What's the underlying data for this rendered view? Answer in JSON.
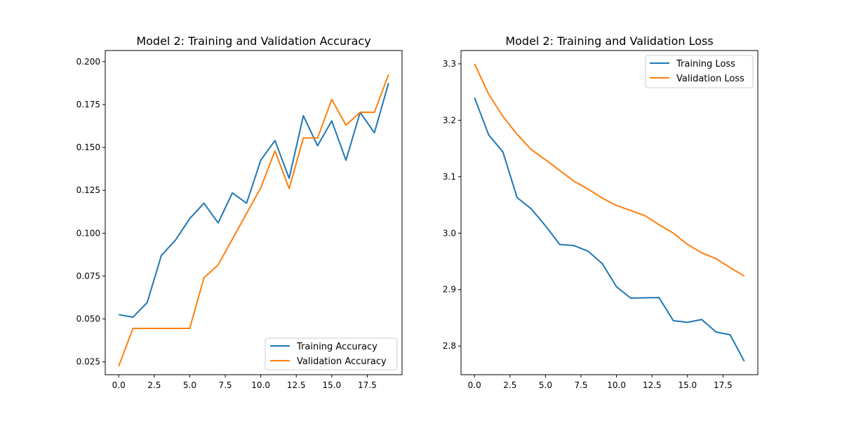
{
  "chart_data": [
    {
      "type": "line",
      "title": "Model 2: Training and Validation Accuracy",
      "xlabel": "",
      "ylabel": "",
      "xlim": [
        -0.95,
        19.95
      ],
      "ylim": [
        0.0175,
        0.2065
      ],
      "xticks": [
        "0.0",
        "2.5",
        "5.0",
        "7.5",
        "10.0",
        "12.5",
        "15.0",
        "17.5"
      ],
      "xtick_values": [
        0,
        2.5,
        5,
        7.5,
        10,
        12.5,
        15,
        17.5
      ],
      "yticks": [
        "0.025",
        "0.050",
        "0.075",
        "0.100",
        "0.125",
        "0.150",
        "0.175",
        "0.200"
      ],
      "ytick_values": [
        0.025,
        0.05,
        0.075,
        0.1,
        0.125,
        0.15,
        0.175,
        0.2
      ],
      "grid": false,
      "legend_position": "lower-right",
      "x": [
        0,
        1,
        2,
        3,
        4,
        5,
        6,
        7,
        8,
        9,
        10,
        11,
        12,
        13,
        14,
        15,
        16,
        17,
        18,
        19
      ],
      "series": [
        {
          "name": "Training Accuracy",
          "color": "#1f77b4",
          "values": [
            0.0525,
            0.051,
            0.0595,
            0.087,
            0.096,
            0.1085,
            0.1175,
            0.106,
            0.1235,
            0.1175,
            0.1425,
            0.154,
            0.132,
            0.1685,
            0.151,
            0.1655,
            0.1425,
            0.1705,
            0.1585,
            0.1875
          ]
        },
        {
          "name": "Validation Accuracy",
          "color": "#ff7f0e",
          "values": [
            0.0225,
            0.0445,
            0.0445,
            0.0445,
            0.0445,
            0.0445,
            0.074,
            0.0815,
            0.0965,
            0.1115,
            0.1265,
            0.148,
            0.126,
            0.1555,
            0.1555,
            0.178,
            0.163,
            0.1705,
            0.1705,
            0.1925
          ]
        }
      ]
    },
    {
      "type": "line",
      "title": "Model 2: Training and Validation Loss",
      "xlabel": "",
      "ylabel": "",
      "xlim": [
        -0.95,
        19.95
      ],
      "ylim": [
        2.7493,
        3.3235
      ],
      "xticks": [
        "0.0",
        "2.5",
        "5.0",
        "7.5",
        "10.0",
        "12.5",
        "15.0",
        "17.5"
      ],
      "xtick_values": [
        0,
        2.5,
        5,
        7.5,
        10,
        12.5,
        15,
        17.5
      ],
      "yticks": [
        "2.8",
        "2.9",
        "3.0",
        "3.1",
        "3.2",
        "3.3"
      ],
      "ytick_values": [
        2.8,
        2.9,
        3.0,
        3.1,
        3.2,
        3.3
      ],
      "grid": false,
      "legend_position": "upper-right",
      "x": [
        0,
        1,
        2,
        3,
        4,
        5,
        6,
        7,
        8,
        9,
        10,
        11,
        12,
        13,
        14,
        15,
        16,
        17,
        18,
        19
      ],
      "series": [
        {
          "name": "Training Loss",
          "color": "#1f77b4",
          "values": [
            3.24,
            3.174,
            3.144,
            3.063,
            3.043,
            3.013,
            2.98,
            2.978,
            2.968,
            2.946,
            2.905,
            2.885,
            2.8855,
            2.8858,
            2.845,
            2.842,
            2.847,
            2.825,
            2.82,
            2.773
          ]
        },
        {
          "name": "Validation Loss",
          "color": "#ff7f0e",
          "values": [
            3.3,
            3.246,
            3.207,
            3.175,
            3.148,
            3.13,
            3.111,
            3.092,
            3.078,
            3.062,
            3.049,
            3.04,
            3.031,
            3.015,
            3.0,
            2.98,
            2.965,
            2.955,
            2.939,
            2.924
          ]
        }
      ]
    }
  ]
}
